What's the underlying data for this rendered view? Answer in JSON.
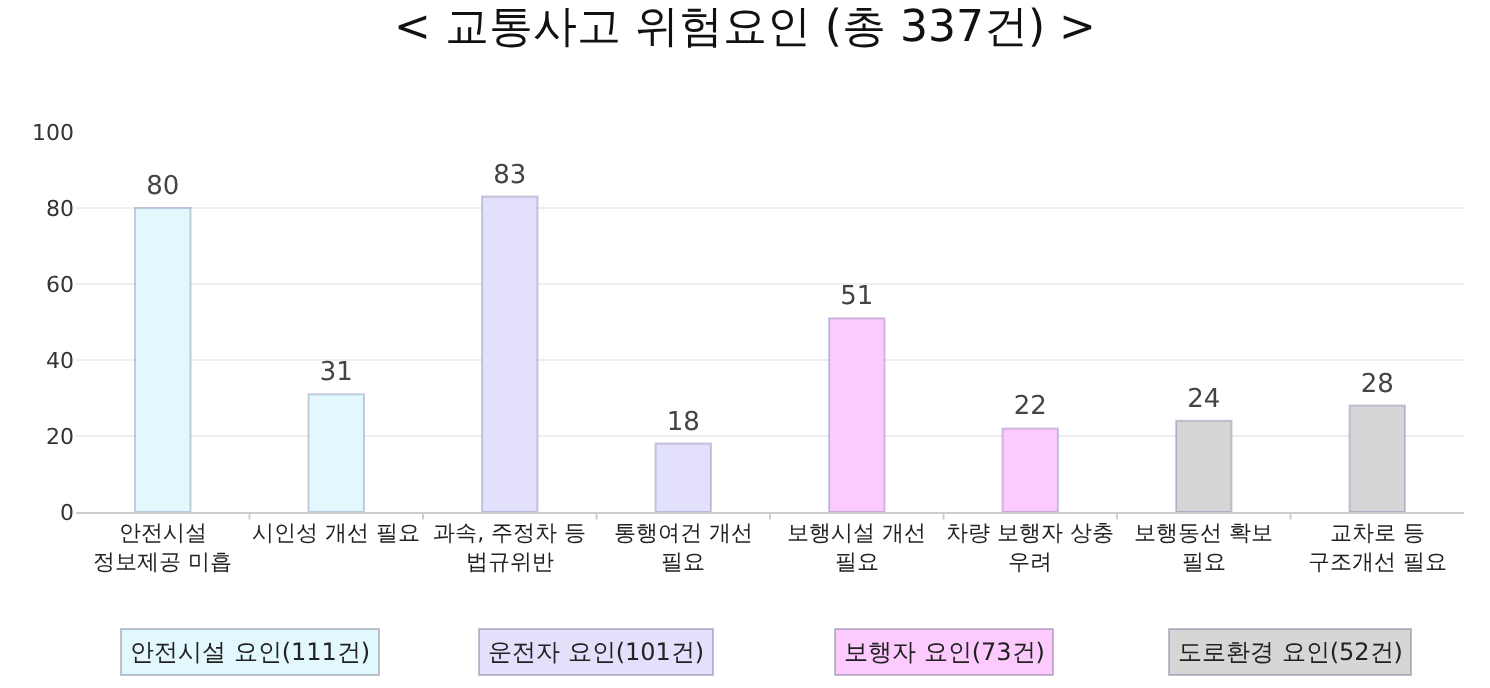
{
  "chart_data": {
    "type": "bar",
    "title": "< 교통사고 위험요인 (총 337건) >",
    "categories": [
      "안전시설\n정보제공 미흡",
      "시인성 개선 필요",
      "과속, 주정차 등\n법규위반",
      "통행여건 개선\n필요",
      "보행시설 개선\n필요",
      "차량 보행자 상충\n우려",
      "보행동선 확보\n필요",
      "교차로 등\n구조개선 필요"
    ],
    "values": [
      80,
      31,
      83,
      18,
      51,
      22,
      24,
      28
    ],
    "colors": [
      "#e3f8fd",
      "#e3f8fd",
      "#e2e0fb",
      "#e2e0fb",
      "#fdcafd",
      "#fdcafd",
      "#d6d6d6",
      "#d6d6d6"
    ],
    "data_labels": true,
    "ylim": [
      0,
      100
    ],
    "yticks": [
      0,
      20,
      40,
      60,
      80,
      100
    ],
    "grid": "y",
    "annotations": [
      "안전시설 요인(111건)",
      "운전자 요인(101건)",
      "보행자 요인(73건)",
      "도로환경 요인(52건)"
    ]
  }
}
